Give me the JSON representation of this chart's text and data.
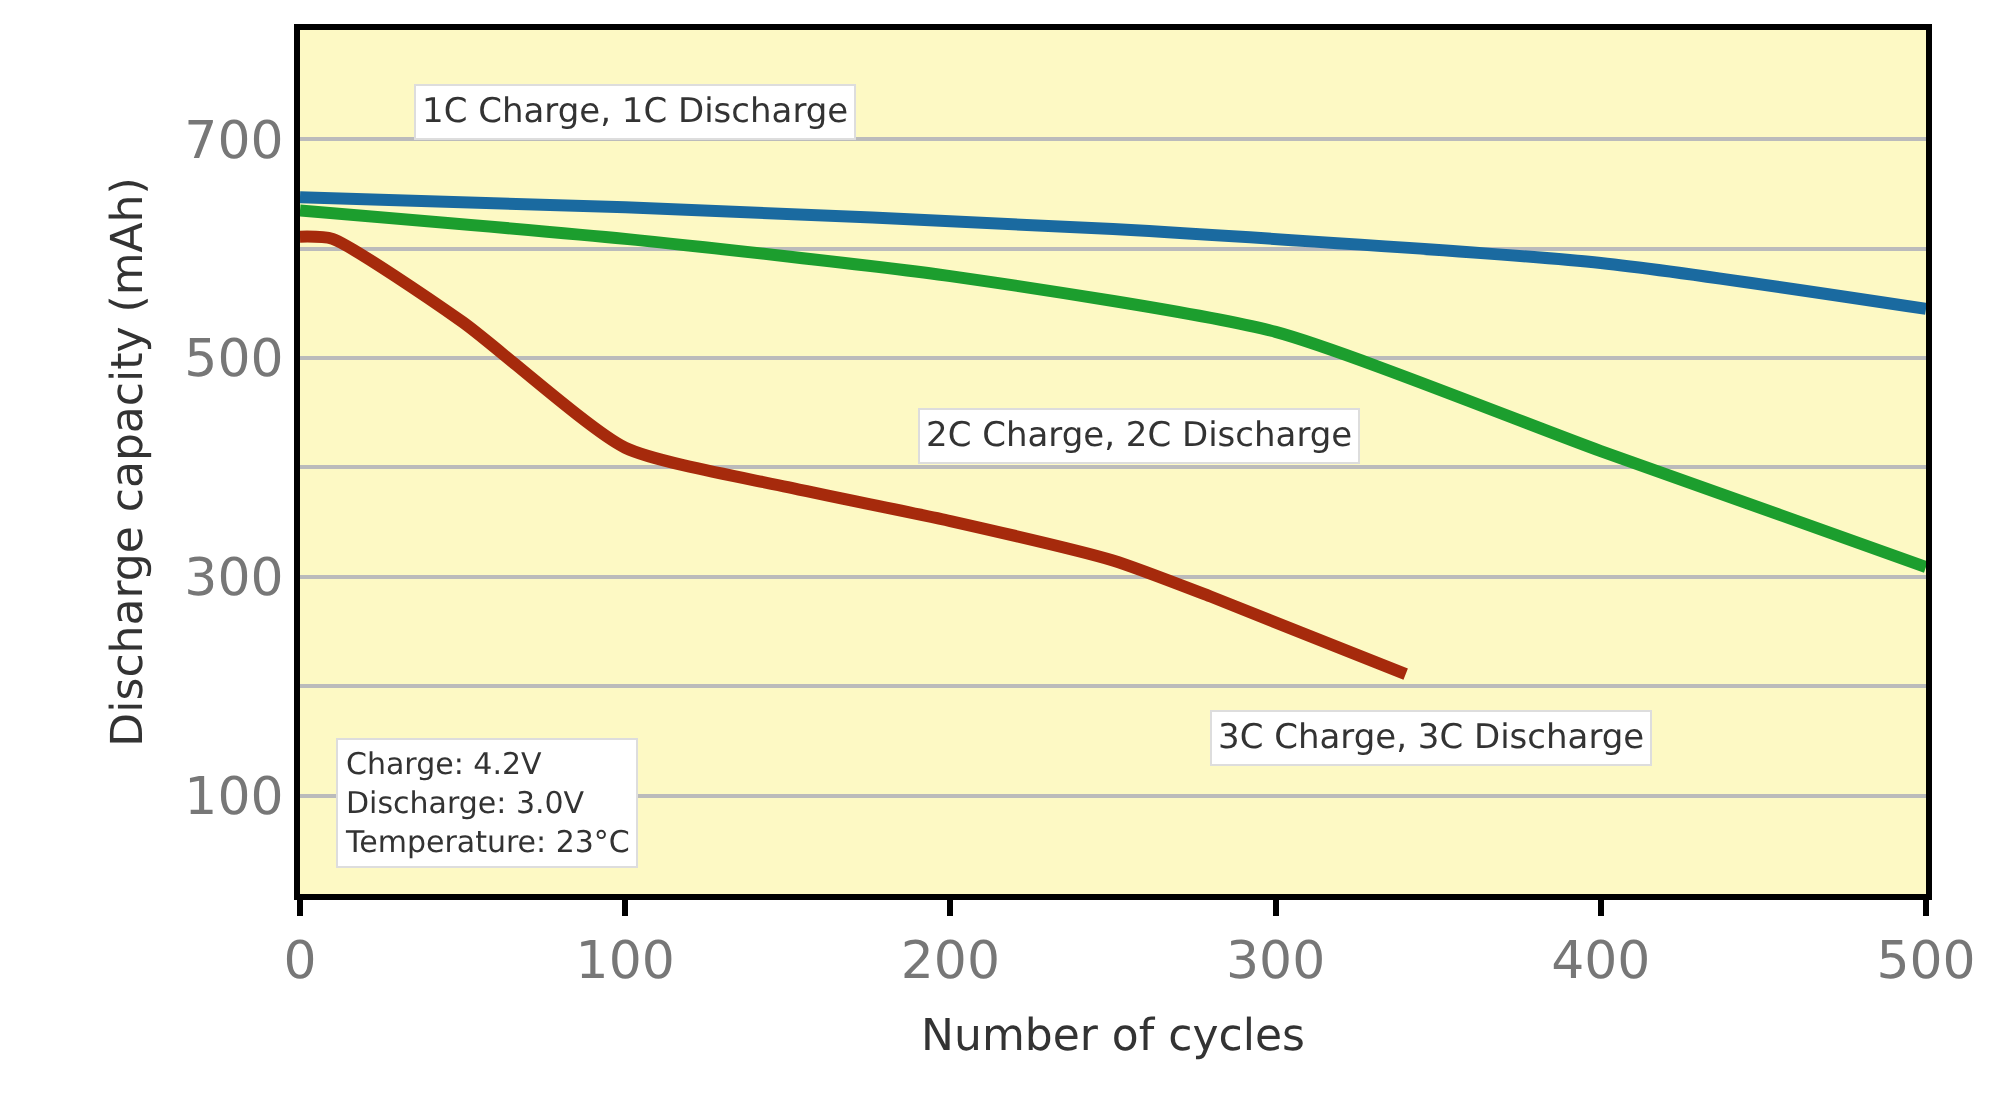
{
  "chart_data": {
    "type": "line",
    "xlabel": "Number of cycles",
    "ylabel": "Discharge capacity (mAh)",
    "xlim": [
      0,
      500
    ],
    "ylim": [
      10,
      800
    ],
    "xticks": [
      0,
      100,
      200,
      300,
      400,
      500
    ],
    "yticks": [
      100,
      {
        "value": 200,
        "label": null
      },
      300,
      {
        "value": 400,
        "label": null
      },
      500,
      {
        "value": 600,
        "label": null
      },
      700
    ],
    "grid": "y",
    "legend": false,
    "marker": "none",
    "line_style": "solid",
    "series": [
      {
        "name": "1C Charge, 1C Discharge",
        "color": "#1a6aa0",
        "x": [
          0,
          100,
          250,
          400,
          500
        ],
        "values": [
          647,
          638,
          618,
          587,
          545
        ]
      },
      {
        "name": "2C Charge, 2C Discharge",
        "color": "#1c9e2e",
        "x": [
          0,
          100,
          200,
          300,
          400,
          500
        ],
        "values": [
          635,
          609,
          575,
          524,
          415,
          309
        ]
      },
      {
        "name": "3C Charge, 3C Discharge",
        "color": "#a62a0c",
        "x": [
          0,
          10,
          50,
          100,
          150,
          200,
          250,
          280,
          340
        ],
        "values": [
          611,
          609,
          533,
          418,
          382,
          351,
          315,
          282,
          211
        ]
      }
    ],
    "annotations": [
      "Charge: 4.2V\nDischarge: 3.0V\nTemperature: 23°C"
    ]
  }
}
